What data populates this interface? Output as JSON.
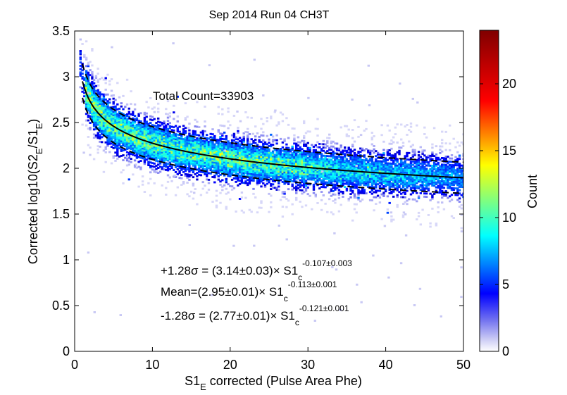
{
  "chart_data": {
    "type": "heatmap",
    "title": "Sep 2014 Run 04 CH3T",
    "xlabel": {
      "main": "S1",
      "sub": "E",
      "rest": " corrected (Pulse Area Phe)"
    },
    "ylabel": {
      "pre": "Corrected log10(S2",
      "sub1": "E",
      "mid": "/S1",
      "sub2": "E",
      "post": ")"
    },
    "xlim": [
      0,
      50
    ],
    "ylim": [
      0,
      3.5
    ],
    "x_ticks": [
      0,
      10,
      20,
      30,
      40,
      50
    ],
    "y_ticks": [
      0,
      0.5,
      1,
      1.5,
      2,
      2.5,
      3,
      3.5
    ],
    "x_tick_labels": [
      "0",
      "10",
      "20",
      "30",
      "40",
      "50"
    ],
    "y_tick_labels": [
      "0",
      "0.5",
      "1",
      "1.5",
      "2",
      "2.5",
      "3",
      "3.5"
    ],
    "colorbar": {
      "label": "Count",
      "range": [
        0,
        24
      ],
      "ticks": [
        0,
        5,
        10,
        15,
        20
      ],
      "tick_labels": [
        "0",
        "5",
        "10",
        "15",
        "20"
      ],
      "colormap": "jet"
    },
    "annotations": {
      "total_count": "Total Count=33903",
      "fit_plus": {
        "lhs": "+1.28σ = (3.14±0.03)× S1",
        "sub": "c",
        "sup": "-0.107±0.003"
      },
      "fit_mean": {
        "lhs": "Mean=(2.95±0.01)× S1",
        "sub": "c",
        "sup": "-0.113±0.001"
      },
      "fit_minus": {
        "lhs": "-1.28σ = (2.77±0.01)× S1",
        "sub": "c",
        "sup": "-0.121±0.001"
      }
    },
    "grid": false,
    "series": [
      {
        "style": "solid",
        "line_color": "#000000",
        "a": 2.95,
        "b": -0.113,
        "x": [
          1,
          2,
          3,
          5,
          10,
          20,
          30,
          40,
          50
        ],
        "y": [
          2.95,
          2.73,
          2.61,
          2.46,
          2.27,
          2.1,
          2.01,
          1.94,
          1.9
        ]
      },
      {
        "style": "dashed",
        "line_color": "#000000",
        "a": 3.14,
        "b": -0.107,
        "x": [
          1,
          2,
          3,
          5,
          10,
          20,
          30,
          40,
          50
        ],
        "y": [
          3.14,
          2.91,
          2.79,
          2.64,
          2.45,
          2.27,
          2.18,
          2.11,
          2.07
        ]
      },
      {
        "style": "dashed",
        "line_color": "#000000",
        "a": 2.77,
        "b": -0.121,
        "x": [
          1,
          2,
          3,
          5,
          10,
          20,
          30,
          40,
          50
        ],
        "y": [
          2.77,
          2.55,
          2.43,
          2.28,
          2.1,
          1.93,
          1.84,
          1.77,
          1.73
        ]
      }
    ]
  }
}
